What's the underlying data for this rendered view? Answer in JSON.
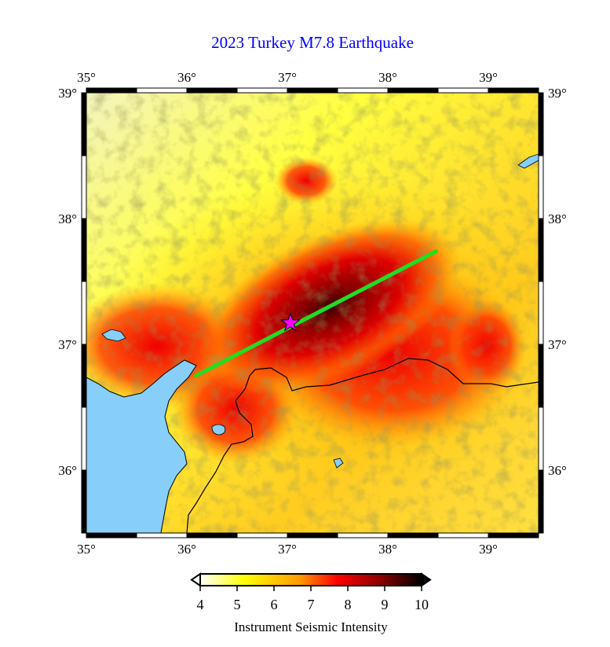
{
  "title": "2023 Turkey M7.8 Earthquake",
  "map": {
    "region": {
      "lon_min": 35,
      "lon_max": 39.5,
      "lat_min": 35.5,
      "lat_max": 39
    },
    "lon_ticks": [
      35,
      36,
      37,
      38,
      39
    ],
    "lat_ticks": [
      36,
      37,
      38,
      39
    ],
    "lon_labels": [
      "35°",
      "36°",
      "37°",
      "38°",
      "39°"
    ],
    "lat_labels": [
      "36°",
      "37°",
      "38°",
      "39°"
    ],
    "epicenter": {
      "lon": 37.03,
      "lat": 37.17,
      "symbol": "star",
      "color": "#ff00ff"
    },
    "fault_rupture": {
      "start": {
        "lon": 36.09,
        "lat": 36.75
      },
      "end": {
        "lon": 38.48,
        "lat": 37.74
      },
      "color": "#22dd22"
    },
    "sea_color": "#87cefa",
    "border_color": "#000000"
  },
  "colorbar": {
    "label": "Instrument Seismic Intensity",
    "min": 4,
    "max": 10,
    "ticks": [
      "4",
      "5",
      "6",
      "7",
      "8",
      "9",
      "10"
    ],
    "colors": [
      "#ffffff",
      "#ffff00",
      "#ff9900",
      "#ff0000",
      "#990000",
      "#000000"
    ]
  }
}
